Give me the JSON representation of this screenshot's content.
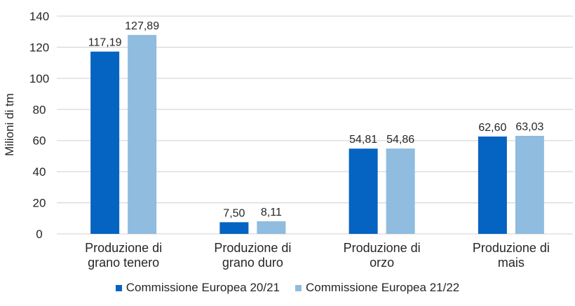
{
  "chart_data": {
    "type": "bar",
    "title": "",
    "xlabel": "",
    "ylabel": "Milioni di tm",
    "ylim": [
      0,
      140
    ],
    "yticks": [
      0,
      20,
      40,
      60,
      80,
      100,
      120,
      140
    ],
    "grid": true,
    "legend_position": "bottom",
    "categories": [
      [
        "Produzione di",
        "grano tenero"
      ],
      [
        "Produzione di",
        "grano duro"
      ],
      [
        "Produzione di",
        "orzo"
      ],
      [
        "Produzione di",
        "mais"
      ]
    ],
    "series": [
      {
        "name": "Commissione Europea 20/21",
        "color": "#0563C1",
        "values": [
          117.19,
          7.5,
          54.81,
          62.6
        ],
        "labels": [
          "117,19",
          "7,50",
          "54,81",
          "62,60"
        ]
      },
      {
        "name": "Commissione Europea 21/22",
        "color": "#8FBCDF",
        "values": [
          127.89,
          8.11,
          54.86,
          63.03
        ],
        "labels": [
          "127,89",
          "8,11",
          "54,86",
          "63,03"
        ]
      }
    ]
  },
  "legend": {
    "items": [
      {
        "label": "Commissione Europea 20/21",
        "color": "#0563C1"
      },
      {
        "label": "Commissione Europea 21/22",
        "color": "#8FBCDF"
      }
    ]
  },
  "colors": {
    "grid": "#D9D9D9",
    "text": "#262626"
  }
}
